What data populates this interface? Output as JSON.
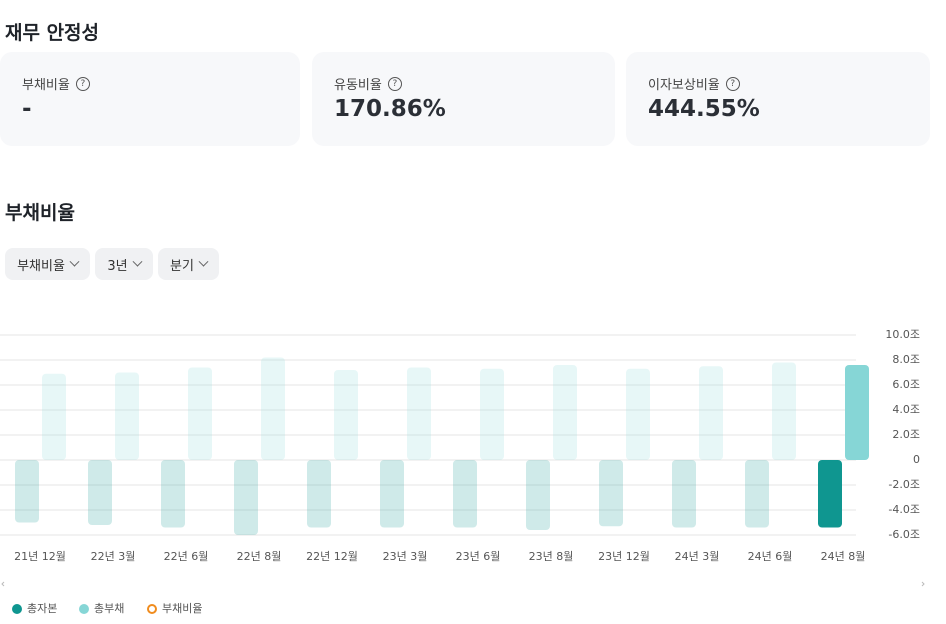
{
  "header": {
    "title": "재무 안정성"
  },
  "cards": [
    {
      "label": "부채비율",
      "value": "-"
    },
    {
      "label": "유동비율",
      "value": "170.86%"
    },
    {
      "label": "이자보상비율",
      "value": "444.55%"
    }
  ],
  "chart_section": {
    "title": "부채비율",
    "filters": [
      "부채비율",
      "3년",
      "분기"
    ]
  },
  "chart_data": {
    "type": "bar",
    "categories": [
      "21년 12월",
      "22년 3월",
      "22년 6월",
      "22년 8월",
      "22년 12월",
      "23년 3월",
      "23년 6월",
      "23년 8월",
      "23년 12월",
      "24년 3월",
      "24년 6월",
      "24년 8월"
    ],
    "series": [
      {
        "name": "총자본",
        "color": "#0f9690",
        "values": [
          -5.0,
          -5.2,
          -5.4,
          -6.0,
          -5.4,
          -5.4,
          -5.4,
          -5.6,
          -5.3,
          -5.4,
          -5.4,
          -5.4
        ]
      },
      {
        "name": "총부채",
        "color": "#86d6d6",
        "values": [
          6.9,
          7.0,
          7.4,
          8.2,
          7.2,
          7.4,
          7.3,
          7.6,
          7.3,
          7.5,
          7.8,
          7.6
        ]
      },
      {
        "name": "부채비율",
        "color": "#f08c1e",
        "type": "line",
        "values": [
          null,
          null,
          null,
          null,
          null,
          null,
          null,
          null,
          null,
          null,
          null,
          null
        ]
      }
    ],
    "ylim": [
      -6,
      10
    ],
    "yticks": [
      {
        "value": 10,
        "label": "10.0조"
      },
      {
        "value": 8,
        "label": "8.0조"
      },
      {
        "value": 6,
        "label": "6.0조"
      },
      {
        "value": 4,
        "label": "4.0조"
      },
      {
        "value": 2,
        "label": "2.0조"
      },
      0,
      {
        "value": -2,
        "label": "-2.0조"
      },
      {
        "value": -4,
        "label": "-4.0조"
      },
      {
        "value": -6,
        "label": "-6.0조"
      }
    ],
    "grid": true,
    "legend": "bottom-left"
  }
}
